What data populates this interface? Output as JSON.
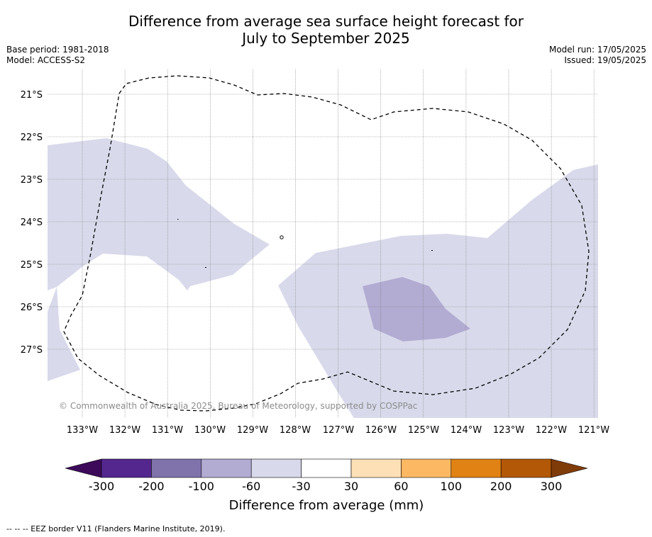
{
  "title_line1": "Difference from average sea surface height forecast for",
  "title_line2": "July to September 2025",
  "base_period": "Base period: 1981-2018",
  "model": "Model: ACCESS-S2",
  "model_run": "Model run: 17/05/2025",
  "issued": "Issued: 19/05/2025",
  "copyright": "© Commonwealth of Australia 2025, Bureau of Meteorology, supported by COSPPac",
  "map": {
    "lat_labels": [
      "21°S",
      "22°S",
      "23°S",
      "24°S",
      "25°S",
      "26°S",
      "27°S"
    ],
    "lon_labels": [
      "133°W",
      "132°W",
      "131°W",
      "130°W",
      "129°W",
      "128°W",
      "127°W",
      "126°W",
      "125°W",
      "124°W",
      "123°W",
      "122°W",
      "121°W"
    ]
  },
  "colorbar": {
    "title": "Difference from average (mm)",
    "ticks": [
      "-300",
      "-200",
      "-100",
      "-60",
      "-30",
      "30",
      "60",
      "100",
      "200",
      "300"
    ],
    "colors": [
      "#3d0a5a",
      "#54278f",
      "#8073ac",
      "#b2abd2",
      "#d8daeb",
      "#ffffff",
      "#fee0b6",
      "#fdb863",
      "#e08214",
      "#b35806",
      "#7f3b08"
    ]
  },
  "footer": "--  --  -- EEZ border V11 (Flanders Marine Institute, 2019)."
}
